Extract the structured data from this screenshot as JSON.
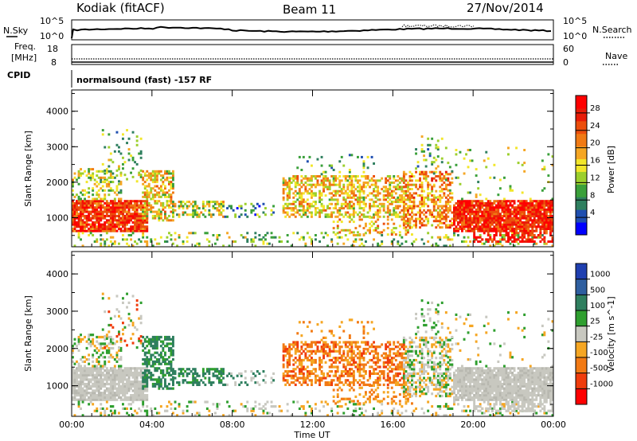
{
  "header": {
    "site": "Kodiak (fitACF)",
    "beam": "Beam 11",
    "date": "27/Nov/2014"
  },
  "nsky": {
    "label_left": "N.Sky",
    "label_right": "N.Search",
    "tick_top": "10^5",
    "tick_bottom": "10^0"
  },
  "freq": {
    "label_line1": "Freq.",
    "label_line2": "[MHz]",
    "ticks_left": [
      "18",
      "8"
    ],
    "ticks_right": [
      "60",
      "0"
    ],
    "label_right": "Nave"
  },
  "cpid": {
    "label": "CPID",
    "mode_text": "normalsound (fast) -157 RF"
  },
  "chart_data": [
    {
      "type": "heatmap",
      "title": "Power",
      "ylabel": "Slant Range [km]",
      "xlabel": "Time UT",
      "xlim": [
        "00:00",
        "24:00"
      ],
      "ylim": [
        180,
        4600
      ],
      "y_ticks": [
        "1000",
        "2000",
        "3000",
        "4000"
      ],
      "x_ticks": [
        "00:00",
        "04:00",
        "08:00",
        "12:00",
        "16:00",
        "20:00",
        "00:00"
      ],
      "colorbar": {
        "label": "Power [dB]",
        "ticks": [
          "28",
          "24",
          "20",
          "16",
          "12",
          "8",
          "4"
        ],
        "range": [
          0,
          32
        ],
        "colors": [
          "#0000ff",
          "#1f4fb0",
          "#2f7f5f",
          "#3aa03a",
          "#9ccf2c",
          "#f2e62a",
          "#f5a623",
          "#f07a14",
          "#ec4e0c",
          "#e81c08",
          "#ff0000"
        ]
      }
    },
    {
      "type": "heatmap",
      "title": "Velocity",
      "ylabel": "Slant Range [km]",
      "xlabel": "Time UT",
      "xlim": [
        "00:00",
        "24:00"
      ],
      "ylim": [
        180,
        4600
      ],
      "y_ticks": [
        "1000",
        "2000",
        "3000",
        "4000"
      ],
      "x_ticks": [
        "00:00",
        "04:00",
        "08:00",
        "12:00",
        "16:00",
        "20:00",
        "00:00"
      ],
      "colorbar": {
        "label": "Velocity [m s^-1]",
        "ticks": [
          "1000",
          "500",
          "100",
          "25",
          "-25",
          "-100",
          "-500",
          "-1000"
        ],
        "range": [
          -1000,
          1000
        ],
        "colors": [
          "#ff0000",
          "#f03c0c",
          "#f27a14",
          "#f5a623",
          "#c8c8c0",
          "#2f9f2f",
          "#2f7f5f",
          "#2f5fa0",
          "#1f3fb0"
        ]
      }
    }
  ],
  "axis": {
    "x_label": "Time UT",
    "x_ticks": [
      "00:00",
      "04:00",
      "08:00",
      "12:00",
      "16:00",
      "20:00",
      "00:00"
    ]
  }
}
